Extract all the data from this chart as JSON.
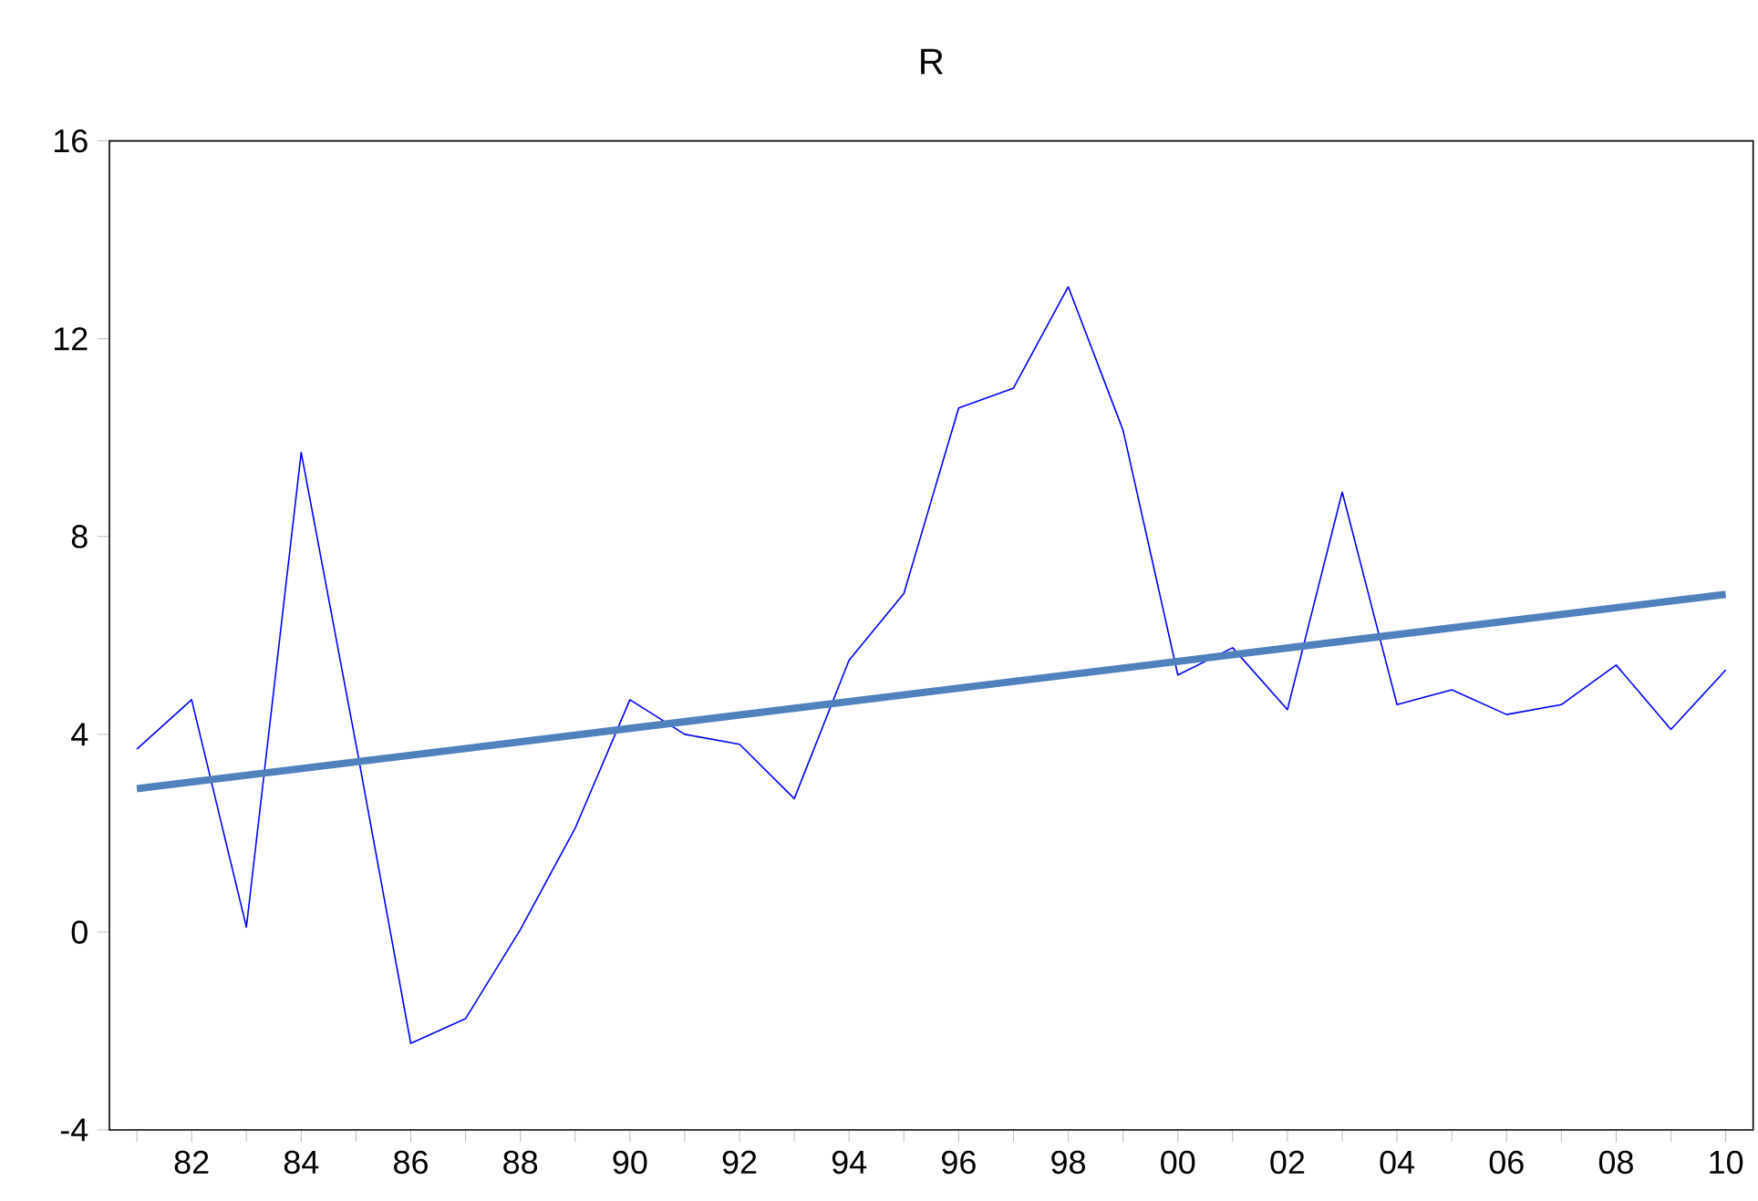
{
  "chart_data": {
    "type": "line",
    "title": "R",
    "x": [
      1981,
      1982,
      1983,
      1984,
      1985,
      1986,
      1987,
      1988,
      1989,
      1990,
      1991,
      1992,
      1993,
      1994,
      1995,
      1996,
      1997,
      1998,
      1999,
      2000,
      2001,
      2002,
      2003,
      2004,
      2005,
      2006,
      2007,
      2008,
      2009,
      2010
    ],
    "series": [
      {
        "color": "#0000ff",
        "values": [
          3.7,
          4.7,
          0.1,
          9.7,
          3.8,
          -2.25,
          -1.75,
          0.05,
          2.1,
          4.7,
          4.0,
          3.8,
          2.7,
          5.5,
          6.85,
          10.6,
          11.0,
          13.05,
          10.15,
          5.2,
          5.75,
          4.5,
          8.9,
          4.6,
          4.9,
          4.4,
          4.6,
          5.4,
          4.1,
          5.3
        ]
      },
      {
        "color": "#4f81bd",
        "x": [
          1981,
          2010
        ],
        "values": [
          2.9,
          6.83
        ]
      }
    ],
    "xlim": [
      1980.5,
      2010.5
    ],
    "xticks": [
      {
        "value": 1981,
        "label": null
      },
      {
        "value": 1982,
        "label": "82"
      },
      {
        "value": 1983,
        "label": null
      },
      {
        "value": 1984,
        "label": "84"
      },
      {
        "value": 1985,
        "label": null
      },
      {
        "value": 1986,
        "label": "86"
      },
      {
        "value": 1987,
        "label": null
      },
      {
        "value": 1988,
        "label": "88"
      },
      {
        "value": 1989,
        "label": null
      },
      {
        "value": 1990,
        "label": "90"
      },
      {
        "value": 1991,
        "label": null
      },
      {
        "value": 1992,
        "label": "92"
      },
      {
        "value": 1993,
        "label": null
      },
      {
        "value": 1994,
        "label": "94"
      },
      {
        "value": 1995,
        "label": null
      },
      {
        "value": 1996,
        "label": "96"
      },
      {
        "value": 1997,
        "label": null
      },
      {
        "value": 1998,
        "label": "98"
      },
      {
        "value": 1999,
        "label": null
      },
      {
        "value": 2000,
        "label": "00"
      },
      {
        "value": 2001,
        "label": null
      },
      {
        "value": 2002,
        "label": "02"
      },
      {
        "value": 2003,
        "label": null
      },
      {
        "value": 2004,
        "label": "04"
      },
      {
        "value": 2005,
        "label": null
      },
      {
        "value": 2006,
        "label": "06"
      },
      {
        "value": 2007,
        "label": null
      },
      {
        "value": 2008,
        "label": "08"
      },
      {
        "value": 2009,
        "label": null
      },
      {
        "value": 2010,
        "label": "10"
      }
    ],
    "ylim": [
      -4,
      16
    ],
    "yticks": [
      -4,
      0,
      4,
      8,
      12,
      16
    ],
    "grid": false
  }
}
